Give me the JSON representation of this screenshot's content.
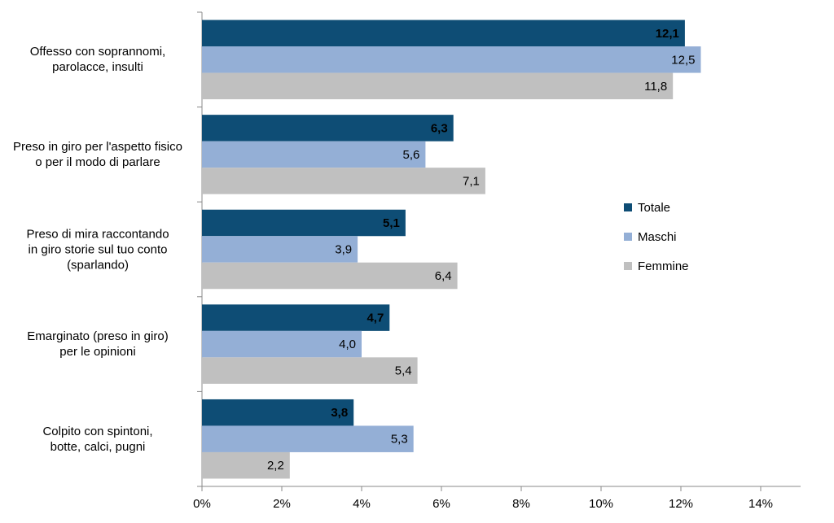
{
  "chart_data": {
    "type": "bar",
    "orientation": "horizontal",
    "categories": [
      "Offesso con soprannomi,\nparolacce, insulti",
      "Preso in giro per l'aspetto fisico\no per il modo di parlare",
      "Preso di mira  raccontando\nin giro storie sul tuo conto\n(sparlando)",
      "Emarginato (preso in giro)\nper le opinioni",
      "Colpito con spintoni,\nbotte, calci, pugni"
    ],
    "series": [
      {
        "name": "Totale",
        "color": "#0e4d75",
        "values": [
          12.1,
          6.3,
          5.1,
          4.7,
          3.8
        ],
        "value_labels": [
          "12,1",
          "6,3",
          "5,1",
          "4,7",
          "3,8"
        ]
      },
      {
        "name": "Maschi",
        "color": "#94afd6",
        "values": [
          12.5,
          5.6,
          3.9,
          4.0,
          5.3
        ],
        "value_labels": [
          "12,5",
          "5,6",
          "3,9",
          "4,0",
          "5,3"
        ]
      },
      {
        "name": "Femmine",
        "color": "#c0c0c0",
        "values": [
          11.8,
          7.1,
          6.4,
          5.4,
          2.2
        ],
        "value_labels": [
          "11,8",
          "7,1",
          "6,4",
          "5,4",
          "2,2"
        ]
      }
    ],
    "xlim": [
      0,
      15
    ],
    "xticks": [
      {
        "value": 0,
        "label": "0%"
      },
      {
        "value": 2,
        "label": "2%"
      },
      {
        "value": 4,
        "label": "4%"
      },
      {
        "value": 6,
        "label": "6%"
      },
      {
        "value": 8,
        "label": "8%"
      },
      {
        "value": 10,
        "label": "10%"
      },
      {
        "value": 12,
        "label": "12%"
      },
      {
        "value": 14,
        "label": "14%"
      }
    ],
    "legend": "right"
  }
}
